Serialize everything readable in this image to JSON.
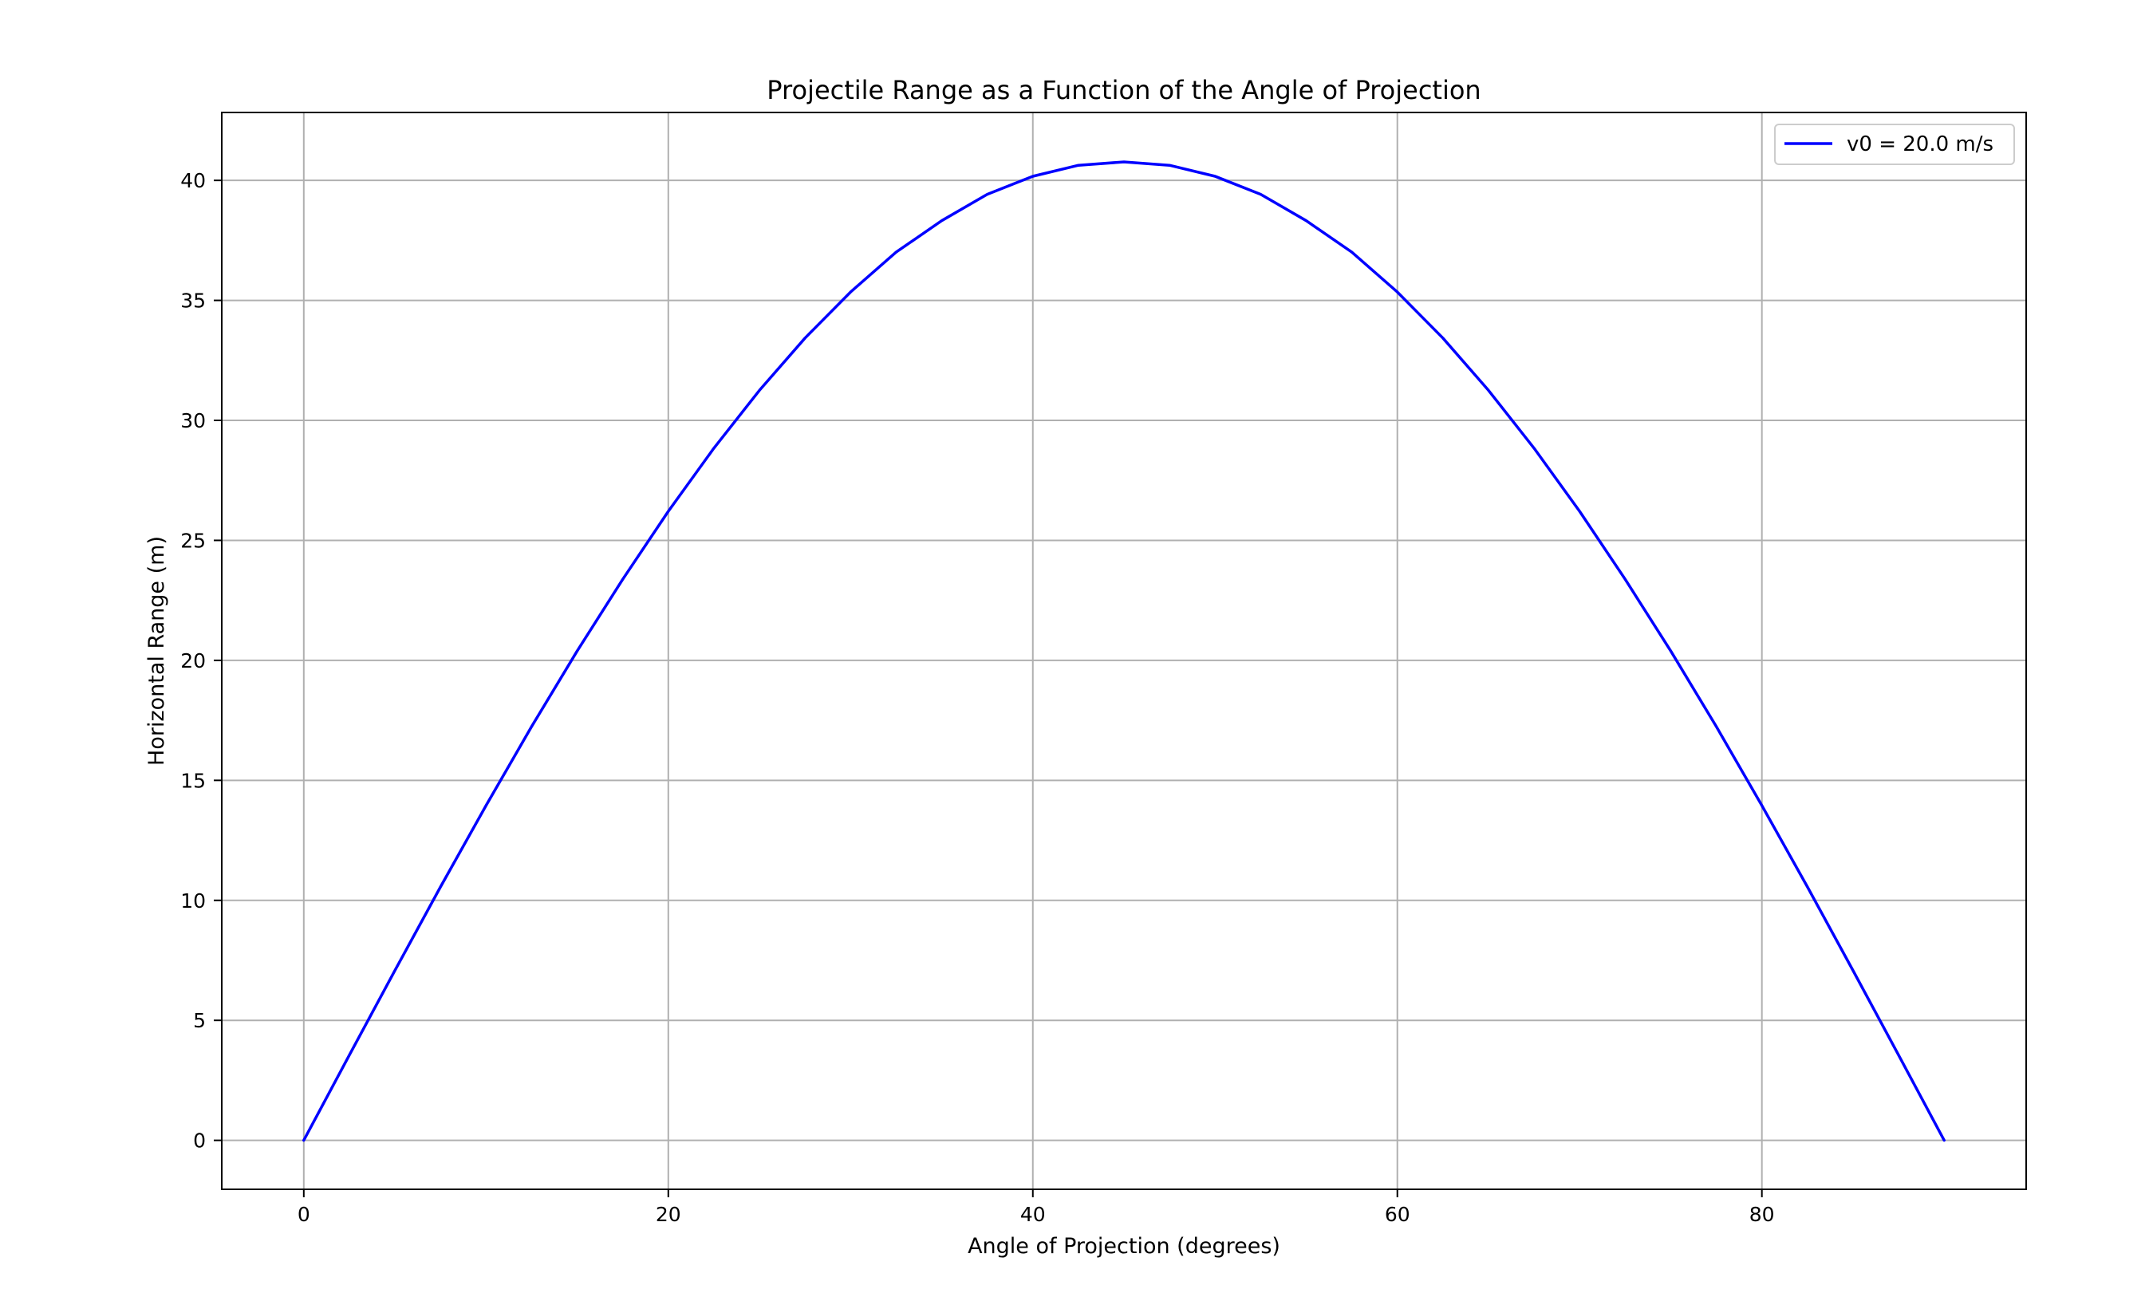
{
  "chart_data": {
    "type": "line",
    "title": "Projectile Range as a Function of the Angle of Projection",
    "xlabel": "Angle of Projection (degrees)",
    "ylabel": "Horizontal Range (m)",
    "xlim": [
      -4.5,
      94.5
    ],
    "ylim": [
      -2.04,
      42.83
    ],
    "xticks": [
      0,
      20,
      40,
      60,
      80
    ],
    "xtick_labels": [
      "0",
      "20",
      "40",
      "60",
      "80"
    ],
    "yticks": [
      0,
      5,
      10,
      15,
      20,
      25,
      30,
      35,
      40
    ],
    "ytick_labels": [
      "0",
      "5",
      "10",
      "15",
      "20",
      "25",
      "30",
      "35",
      "40"
    ],
    "grid": true,
    "legend": {
      "location": "upper right",
      "entries": [
        "v0 = 20.0 m/s"
      ]
    },
    "series": [
      {
        "name": "v0 = 20.0 m/s",
        "color": "#0000ff",
        "x": [
          0,
          2.5,
          5,
          7.5,
          10,
          12.5,
          15,
          17.5,
          20,
          22.5,
          25,
          27.5,
          30,
          32.5,
          35,
          37.5,
          40,
          42.5,
          45,
          47.5,
          50,
          52.5,
          55,
          57.5,
          60,
          62.5,
          65,
          67.5,
          70,
          72.5,
          75,
          77.5,
          80,
          82.5,
          85,
          87.5,
          90
        ],
        "y": [
          0,
          3.55,
          7.08,
          10.56,
          13.95,
          17.24,
          20.39,
          23.38,
          26.21,
          28.84,
          31.25,
          33.43,
          35.35,
          37.01,
          38.32,
          39.42,
          40.17,
          40.63,
          40.77,
          40.63,
          40.17,
          39.42,
          38.32,
          37.01,
          35.35,
          33.43,
          31.25,
          28.84,
          26.21,
          23.38,
          20.39,
          17.24,
          13.95,
          10.56,
          7.08,
          3.55,
          0
        ]
      }
    ]
  }
}
